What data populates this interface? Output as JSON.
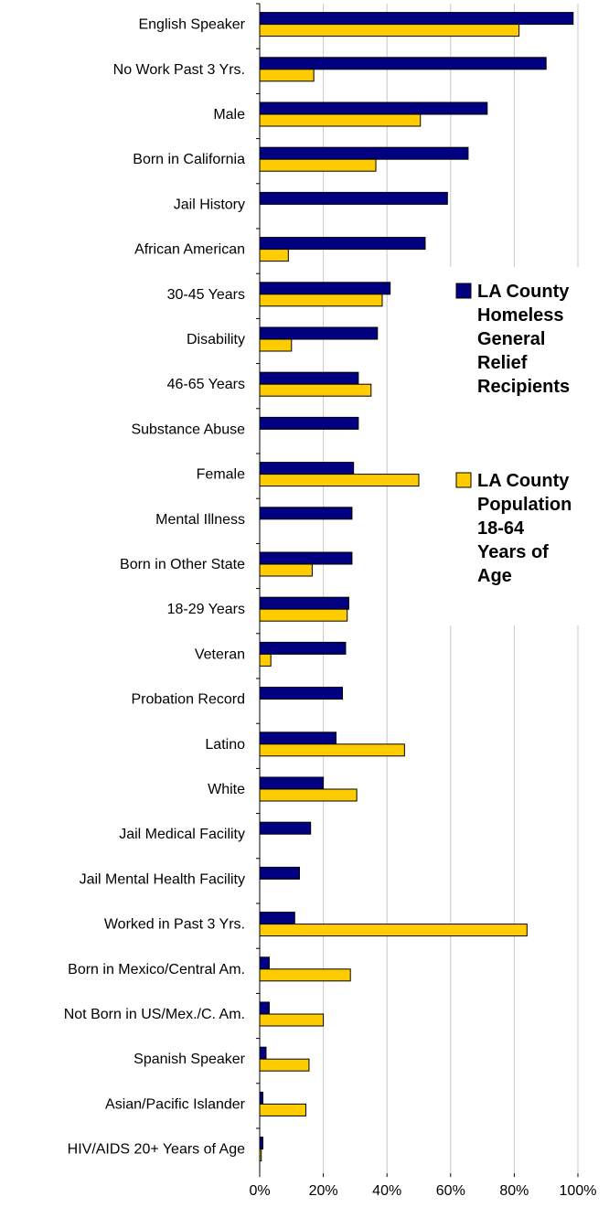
{
  "chart_data": {
    "type": "bar",
    "orientation": "horizontal",
    "categories": [
      "English Speaker",
      "No Work Past 3 Yrs.",
      "Male",
      "Born in California",
      "Jail History",
      "African American",
      "30-45 Years",
      "Disability",
      "46-65 Years",
      "Substance Abuse",
      "Female",
      "Mental Illness",
      "Born in Other State",
      "18-29 Years",
      "Veteran",
      "Probation Record",
      "Latino",
      "White",
      "Jail Medical Facility",
      "Jail Mental Health Facility",
      "Worked in Past 3 Yrs.",
      "Born in Mexico/Central Am.",
      "Not Born in US/Mex./C. Am.",
      "Spanish Speaker",
      "Asian/Pacific Islander",
      "HIV/AIDS 20+ Years of Age"
    ],
    "series": [
      {
        "name": "LA County Homeless General Relief Recipients",
        "color": "#000080",
        "values": [
          98.5,
          90,
          71.5,
          65.5,
          59,
          52,
          41,
          37,
          31,
          31,
          29.5,
          29,
          29,
          28,
          27,
          26,
          24,
          20,
          16,
          12.5,
          11,
          3,
          3,
          2,
          1,
          1
        ]
      },
      {
        "name": "LA County Population 18-64 Years of Age",
        "color": "#FFCC00",
        "values": [
          81.5,
          17,
          50.5,
          36.5,
          null,
          9,
          38.5,
          10,
          35,
          null,
          50,
          null,
          16.5,
          27.5,
          3.5,
          null,
          45.5,
          30.5,
          null,
          null,
          84,
          28.5,
          20,
          15.5,
          14.5,
          0.5
        ]
      }
    ],
    "xlim": [
      0,
      100
    ],
    "xticks": [
      "0%",
      "20%",
      "40%",
      "60%",
      "80%",
      "100%"
    ],
    "grid": true,
    "legend_position": "right"
  },
  "legend": {
    "series1": [
      "LA County",
      "Homeless",
      "General",
      "Relief",
      "Recipients"
    ],
    "series2": [
      "LA County",
      "Population",
      "18-64",
      "Years of",
      "Age"
    ]
  }
}
